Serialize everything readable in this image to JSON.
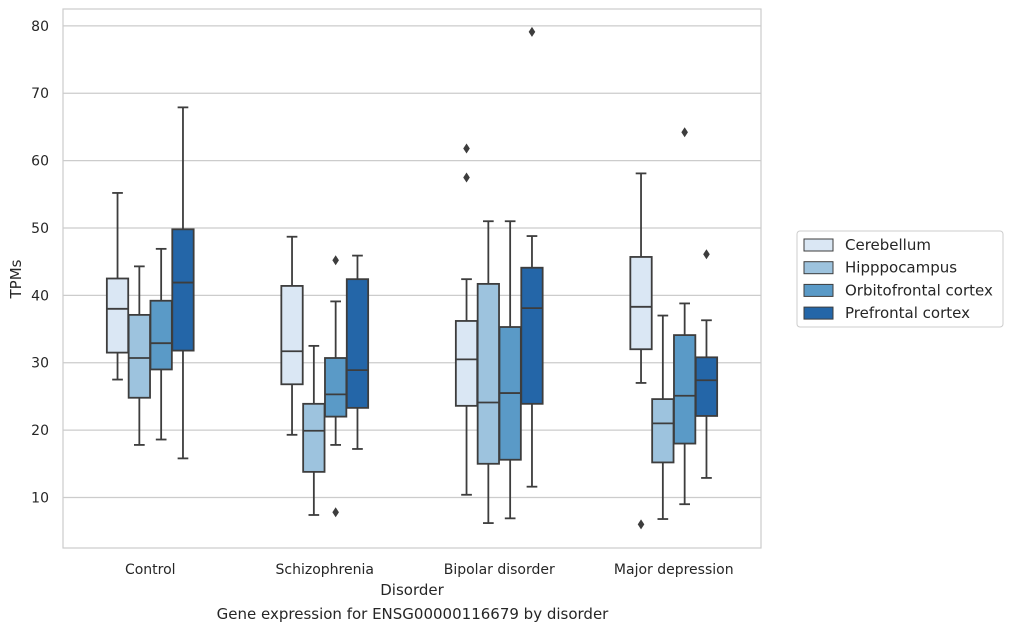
{
  "caption": "Gene expression for ENSG00000116679 by disorder",
  "chart_data": {
    "type": "box",
    "xlabel": "Disorder",
    "ylabel": "TPMs",
    "ylim": [
      2.5,
      82.5
    ],
    "yticks": [
      10,
      20,
      30,
      40,
      50,
      60,
      70,
      80
    ],
    "grid": "horizontal",
    "legend_position": "right",
    "categories": [
      "Control",
      "Schizophrenia",
      "Bipolar disorder",
      "Major depression"
    ],
    "series": [
      {
        "name": "Cerebellum",
        "color": "#dae7f4",
        "boxes": [
          {
            "min": 27.5,
            "q1": 31.5,
            "median": 38.0,
            "q3": 42.5,
            "max": 55.2,
            "outliers": []
          },
          {
            "min": 19.3,
            "q1": 26.8,
            "median": 31.7,
            "q3": 41.4,
            "max": 48.7,
            "outliers": []
          },
          {
            "min": 10.4,
            "q1": 23.6,
            "median": 30.5,
            "q3": 36.2,
            "max": 42.4,
            "outliers": [
              61.8,
              57.5
            ]
          },
          {
            "min": 27.0,
            "q1": 32.0,
            "median": 38.3,
            "q3": 45.7,
            "max": 58.1,
            "outliers": [
              6.0
            ]
          }
        ]
      },
      {
        "name": "Hipppocampus",
        "color": "#9dc3de",
        "boxes": [
          {
            "min": 17.8,
            "q1": 24.8,
            "median": 30.7,
            "q3": 37.1,
            "max": 44.3,
            "outliers": []
          },
          {
            "min": 7.4,
            "q1": 13.8,
            "median": 19.9,
            "q3": 23.9,
            "max": 32.5,
            "outliers": []
          },
          {
            "min": 6.2,
            "q1": 15.0,
            "median": 24.1,
            "q3": 41.7,
            "max": 51.0,
            "outliers": []
          },
          {
            "min": 6.8,
            "q1": 15.2,
            "median": 21.0,
            "q3": 24.6,
            "max": 37.0,
            "outliers": []
          }
        ]
      },
      {
        "name": "Orbitofrontal cortex",
        "color": "#5a9ac7",
        "boxes": [
          {
            "min": 18.6,
            "q1": 29.0,
            "median": 32.9,
            "q3": 39.2,
            "max": 46.9,
            "outliers": []
          },
          {
            "min": 17.8,
            "q1": 22.0,
            "median": 25.3,
            "q3": 30.7,
            "max": 39.1,
            "outliers": [
              45.2,
              7.8
            ]
          },
          {
            "min": 6.9,
            "q1": 15.6,
            "median": 25.5,
            "q3": 35.3,
            "max": 51.0,
            "outliers": []
          },
          {
            "min": 9.0,
            "q1": 18.0,
            "median": 25.1,
            "q3": 34.1,
            "max": 38.8,
            "outliers": [
              64.2
            ]
          }
        ]
      },
      {
        "name": "Prefrontal cortex",
        "color": "#2466a8",
        "boxes": [
          {
            "min": 15.8,
            "q1": 31.8,
            "median": 41.9,
            "q3": 49.8,
            "max": 67.9,
            "outliers": []
          },
          {
            "min": 17.2,
            "q1": 23.3,
            "median": 28.9,
            "q3": 42.4,
            "max": 45.9,
            "outliers": []
          },
          {
            "min": 11.6,
            "q1": 23.9,
            "median": 38.1,
            "q3": 44.1,
            "max": 48.8,
            "outliers": [
              79.1
            ]
          },
          {
            "min": 12.9,
            "q1": 22.1,
            "median": 27.4,
            "q3": 30.8,
            "max": 36.3,
            "outliers": [
              46.1
            ]
          }
        ]
      }
    ]
  }
}
